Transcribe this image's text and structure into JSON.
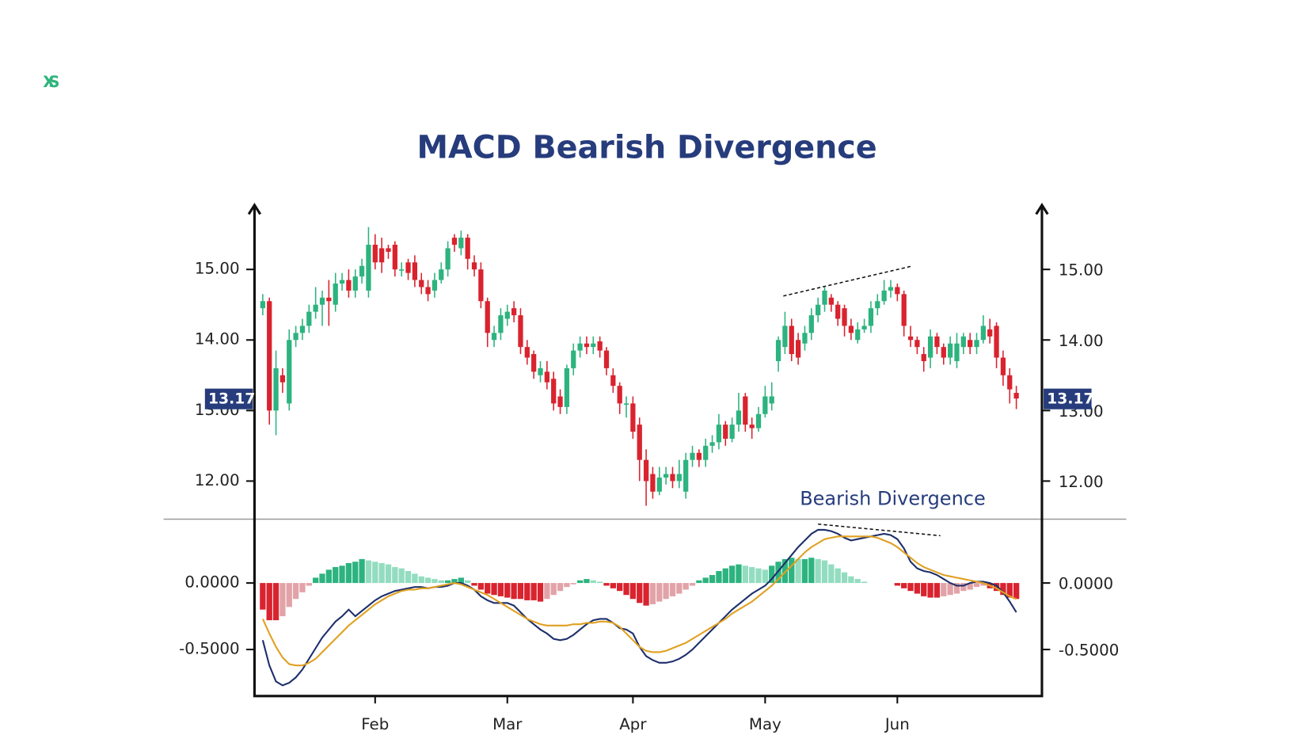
{
  "logo": "XS",
  "chart_data": [
    {
      "type": "candlestick",
      "title": "MACD Bearish Divergence",
      "categories": [
        null,
        null,
        null,
        null,
        null,
        null,
        null,
        null,
        null,
        null,
        null,
        null,
        null,
        null,
        null,
        null,
        null,
        "Feb",
        null,
        null,
        null,
        null,
        null,
        null,
        null,
        null,
        null,
        null,
        null,
        null,
        null,
        null,
        null,
        null,
        null,
        null,
        null,
        "Mar",
        null,
        null,
        null,
        null,
        null,
        null,
        null,
        null,
        null,
        null,
        null,
        null,
        null,
        null,
        null,
        null,
        null,
        null,
        "Apr",
        null,
        null,
        null,
        null,
        null,
        null,
        null,
        null,
        null,
        null,
        null,
        null,
        null,
        null,
        null,
        null,
        null,
        null,
        null,
        "May",
        null,
        null,
        null,
        null,
        null,
        null,
        null,
        null,
        null,
        null,
        null,
        null,
        null,
        null,
        null,
        null,
        null,
        null,
        null,
        "Jun",
        null,
        null,
        null,
        null,
        null,
        null,
        null,
        null,
        null,
        null,
        null,
        null,
        null,
        null,
        null,
        null,
        null,
        null
      ],
      "open": [
        14.45,
        14.55,
        13.0,
        13.5,
        13.1,
        14.0,
        14.1,
        14.2,
        14.4,
        14.5,
        14.6,
        14.5,
        14.8,
        14.85,
        14.7,
        14.9,
        14.7,
        15.35,
        15.3,
        15.3,
        15.35,
        15.0,
        15.1,
        15.1,
        14.85,
        14.75,
        14.7,
        14.85,
        15.0,
        15.45,
        15.3,
        15.45,
        15.1,
        15.0,
        14.55,
        14.0,
        14.1,
        14.3,
        14.45,
        14.35,
        13.9,
        13.8,
        13.5,
        13.55,
        13.45,
        13.2,
        13.05,
        13.6,
        13.85,
        13.95,
        13.9,
        13.98,
        13.85,
        13.5,
        13.35,
        13.1,
        13.1,
        12.8,
        12.3,
        12.1,
        11.85,
        12.05,
        12.1,
        12.0,
        11.85,
        12.3,
        12.4,
        12.3,
        12.5,
        12.55,
        12.8,
        12.6,
        12.8,
        13.2,
        12.8,
        12.75,
        12.95,
        13.1,
        13.7,
        13.9,
        14.2,
        14.0,
        13.95,
        14.1,
        14.35,
        14.5,
        14.6,
        14.5,
        14.45,
        14.2,
        14.0,
        14.15,
        14.2,
        14.45,
        14.55,
        14.7,
        14.75,
        14.65,
        14.05,
        14.0,
        13.8,
        13.75,
        14.05,
        13.9,
        13.75,
        13.7,
        13.9,
        14.0,
        13.9,
        14.0,
        14.15,
        14.2,
        13.75,
        13.5,
        13.25
      ],
      "high": [
        14.65,
        14.6,
        13.85,
        13.6,
        14.15,
        14.2,
        14.3,
        14.5,
        14.75,
        14.7,
        14.85,
        14.95,
        14.95,
        15.0,
        15.0,
        15.15,
        15.6,
        15.5,
        15.45,
        15.35,
        15.4,
        15.1,
        15.15,
        15.2,
        14.95,
        14.85,
        14.95,
        15.1,
        15.4,
        15.5,
        15.55,
        15.5,
        15.2,
        15.1,
        14.6,
        14.2,
        14.45,
        14.5,
        14.55,
        14.45,
        14.0,
        13.85,
        13.7,
        13.7,
        13.55,
        13.3,
        13.65,
        13.95,
        14.05,
        14.05,
        14.05,
        14.05,
        13.9,
        13.6,
        13.4,
        13.2,
        13.2,
        12.9,
        12.45,
        12.2,
        12.2,
        12.2,
        12.2,
        12.3,
        12.4,
        12.5,
        12.45,
        12.6,
        12.65,
        12.95,
        12.85,
        12.9,
        13.25,
        13.25,
        12.9,
        13.05,
        13.35,
        13.4,
        14.05,
        14.4,
        14.3,
        14.1,
        14.2,
        14.45,
        14.6,
        14.75,
        14.65,
        14.55,
        14.5,
        14.3,
        14.25,
        14.3,
        14.55,
        14.65,
        14.85,
        14.85,
        14.8,
        14.7,
        14.2,
        14.05,
        13.9,
        14.15,
        14.1,
        13.95,
        14.05,
        14.1,
        14.1,
        14.1,
        14.1,
        14.35,
        14.3,
        14.25,
        13.85,
        13.6,
        13.35
      ],
      "low": [
        14.35,
        12.8,
        12.65,
        13.25,
        13.0,
        13.9,
        14.0,
        14.1,
        14.3,
        14.2,
        14.2,
        14.4,
        14.7,
        14.6,
        14.6,
        14.8,
        14.6,
        15.0,
        14.95,
        15.15,
        14.9,
        14.9,
        14.85,
        14.75,
        14.65,
        14.55,
        14.6,
        14.8,
        14.9,
        15.25,
        15.2,
        15.0,
        14.9,
        14.45,
        13.9,
        13.9,
        14.0,
        14.2,
        14.25,
        13.8,
        13.65,
        13.45,
        13.4,
        13.3,
        13.0,
        12.95,
        12.95,
        13.5,
        13.75,
        13.8,
        13.8,
        13.75,
        13.5,
        13.25,
        12.95,
        12.9,
        12.6,
        12.0,
        11.65,
        11.75,
        11.8,
        11.95,
        11.9,
        11.9,
        11.75,
        12.2,
        12.2,
        12.2,
        12.4,
        12.45,
        12.5,
        12.55,
        12.7,
        12.7,
        12.6,
        12.7,
        12.9,
        13.0,
        13.55,
        13.8,
        13.7,
        13.65,
        13.85,
        14.0,
        14.25,
        14.4,
        14.4,
        14.2,
        14.05,
        14.0,
        13.95,
        14.1,
        14.1,
        14.35,
        14.5,
        14.6,
        14.55,
        14.05,
        13.9,
        13.8,
        13.55,
        13.6,
        13.8,
        13.65,
        13.65,
        13.6,
        13.8,
        13.8,
        13.8,
        13.95,
        13.95,
        13.6,
        13.35,
        13.1,
        13.02
      ],
      "close": [
        14.55,
        13.0,
        13.6,
        13.4,
        14.0,
        14.1,
        14.2,
        14.4,
        14.5,
        14.6,
        14.55,
        14.8,
        14.85,
        14.7,
        14.9,
        15.05,
        15.35,
        15.1,
        15.1,
        15.25,
        15.0,
        15.0,
        14.95,
        14.85,
        14.75,
        14.65,
        14.85,
        15.0,
        15.3,
        15.35,
        15.45,
        15.15,
        15.0,
        14.55,
        14.1,
        14.1,
        14.35,
        14.4,
        14.35,
        13.9,
        13.75,
        13.55,
        13.6,
        13.4,
        13.1,
        13.05,
        13.6,
        13.85,
        13.95,
        13.9,
        13.95,
        13.85,
        13.6,
        13.35,
        13.1,
        13.1,
        12.7,
        12.3,
        12.0,
        11.85,
        12.05,
        12.1,
        12.0,
        12.1,
        12.3,
        12.4,
        12.3,
        12.5,
        12.55,
        12.8,
        12.6,
        12.8,
        13.0,
        12.8,
        12.75,
        12.95,
        13.2,
        13.2,
        14.0,
        14.2,
        13.8,
        13.75,
        14.1,
        14.35,
        14.5,
        14.7,
        14.5,
        14.3,
        14.2,
        14.1,
        14.15,
        14.2,
        14.45,
        14.55,
        14.7,
        14.75,
        14.65,
        14.2,
        14.0,
        13.9,
        13.7,
        14.05,
        13.9,
        13.75,
        13.95,
        13.95,
        14.05,
        13.9,
        14.0,
        14.2,
        14.05,
        13.75,
        13.5,
        13.3,
        13.17
      ],
      "up_color": "#2db37f",
      "down_color": "#d9232e",
      "ylim": [
        11.46,
        15.83
      ],
      "yticks": [
        {
          "value": 12,
          "label": "12.00"
        },
        {
          "value": 13,
          "label": "13.00"
        },
        {
          "value": 14,
          "label": "14.00"
        },
        {
          "value": 15,
          "label": "15.00"
        }
      ],
      "price_label": 13.17,
      "annotation": "Bearish Divergence"
    },
    {
      "type": "macd",
      "histogram": [
        -0.2,
        -0.28,
        -0.28,
        -0.25,
        -0.18,
        -0.12,
        -0.07,
        -0.02,
        0.04,
        0.07,
        0.1,
        0.12,
        0.13,
        0.15,
        0.16,
        0.18,
        0.17,
        0.16,
        0.15,
        0.14,
        0.12,
        0.11,
        0.09,
        0.07,
        0.05,
        0.04,
        0.03,
        0.02,
        0.02,
        0.03,
        0.04,
        0.02,
        -0.02,
        -0.05,
        -0.08,
        -0.09,
        -0.1,
        -0.11,
        -0.12,
        -0.12,
        -0.13,
        -0.13,
        -0.14,
        -0.12,
        -0.09,
        -0.06,
        -0.03,
        -0.01,
        0.02,
        0.03,
        0.02,
        0.01,
        -0.02,
        -0.04,
        -0.06,
        -0.09,
        -0.12,
        -0.15,
        -0.17,
        -0.16,
        -0.14,
        -0.12,
        -0.1,
        -0.08,
        -0.05,
        -0.02,
        0.02,
        0.04,
        0.06,
        0.09,
        0.11,
        0.13,
        0.14,
        0.13,
        0.12,
        0.11,
        0.1,
        0.13,
        0.16,
        0.18,
        0.19,
        0.18,
        0.18,
        0.19,
        0.18,
        0.17,
        0.14,
        0.11,
        0.08,
        0.05,
        0.03,
        0.01,
        0,
        0,
        0,
        0,
        -0.02,
        -0.04,
        -0.06,
        -0.08,
        -0.1,
        -0.11,
        -0.11,
        -0.1,
        -0.09,
        -0.08,
        -0.06,
        -0.05,
        -0.03,
        -0.02,
        -0.04,
        -0.06,
        -0.09,
        -0.11,
        -0.12
      ],
      "histogram_colors": {
        "up_rising": "#2db37f",
        "up_falling": "#93dcc0",
        "down_falling": "#d9232e",
        "down_rising": "#e2a3a8"
      },
      "series": [
        {
          "color": "#1d2f6b",
          "values": [
            -0.43,
            -0.62,
            -0.74,
            -0.77,
            -0.75,
            -0.71,
            -0.65,
            -0.57,
            -0.49,
            -0.41,
            -0.35,
            -0.29,
            -0.25,
            -0.2,
            -0.25,
            -0.21,
            -0.17,
            -0.13,
            -0.1,
            -0.08,
            -0.06,
            -0.05,
            -0.04,
            -0.03,
            -0.03,
            -0.04,
            -0.03,
            -0.03,
            -0.02,
            0.0,
            0.0,
            -0.02,
            -0.05,
            -0.1,
            -0.13,
            -0.15,
            -0.15,
            -0.15,
            -0.17,
            -0.22,
            -0.27,
            -0.31,
            -0.35,
            -0.38,
            -0.42,
            -0.43,
            -0.42,
            -0.39,
            -0.35,
            -0.31,
            -0.28,
            -0.27,
            -0.27,
            -0.3,
            -0.34,
            -0.35,
            -0.38,
            -0.48,
            -0.55,
            -0.58,
            -0.6,
            -0.6,
            -0.59,
            -0.57,
            -0.54,
            -0.5,
            -0.45,
            -0.4,
            -0.35,
            -0.3,
            -0.25,
            -0.2,
            -0.16,
            -0.12,
            -0.08,
            -0.05,
            -0.02,
            0.03,
            0.09,
            0.15,
            0.21,
            0.27,
            0.32,
            0.37,
            0.4,
            0.4,
            0.39,
            0.37,
            0.34,
            0.32,
            0.33,
            0.34,
            0.35,
            0.36,
            0.37,
            0.36,
            0.33,
            0.26,
            0.16,
            0.11,
            0.09,
            0.08,
            0.06,
            0.03,
            0.0,
            -0.02,
            -0.02,
            0.0,
            0.01,
            0.01,
            0.0,
            -0.02,
            -0.07,
            -0.14,
            -0.22
          ]
        },
        {
          "color": "#e0a021",
          "values": [
            -0.27,
            -0.38,
            -0.48,
            -0.56,
            -0.61,
            -0.62,
            -0.62,
            -0.6,
            -0.57,
            -0.52,
            -0.47,
            -0.42,
            -0.37,
            -0.32,
            -0.28,
            -0.24,
            -0.2,
            -0.16,
            -0.13,
            -0.1,
            -0.08,
            -0.06,
            -0.05,
            -0.05,
            -0.04,
            -0.04,
            -0.03,
            -0.02,
            -0.01,
            0.0,
            -0.01,
            -0.03,
            -0.05,
            -0.07,
            -0.09,
            -0.12,
            -0.15,
            -0.18,
            -0.21,
            -0.24,
            -0.27,
            -0.29,
            -0.31,
            -0.32,
            -0.32,
            -0.32,
            -0.32,
            -0.31,
            -0.31,
            -0.3,
            -0.3,
            -0.29,
            -0.29,
            -0.3,
            -0.33,
            -0.38,
            -0.43,
            -0.48,
            -0.51,
            -0.52,
            -0.52,
            -0.51,
            -0.49,
            -0.47,
            -0.45,
            -0.42,
            -0.39,
            -0.36,
            -0.33,
            -0.3,
            -0.27,
            -0.23,
            -0.2,
            -0.17,
            -0.14,
            -0.1,
            -0.06,
            -0.02,
            0.03,
            0.08,
            0.13,
            0.18,
            0.23,
            0.27,
            0.3,
            0.33,
            0.34,
            0.35,
            0.35,
            0.35,
            0.35,
            0.35,
            0.35,
            0.34,
            0.32,
            0.3,
            0.27,
            0.23,
            0.19,
            0.15,
            0.12,
            0.1,
            0.08,
            0.06,
            0.05,
            0.04,
            0.03,
            0.02,
            0.01,
            0.0,
            -0.02,
            -0.04,
            -0.07,
            -0.1,
            -0.12
          ]
        }
      ],
      "ylim": [
        -0.85,
        0.48
      ],
      "yticks": [
        {
          "value": -0.5,
          "label": "-0.5000"
        },
        {
          "value": 0,
          "label": "0.0000"
        }
      ]
    }
  ]
}
